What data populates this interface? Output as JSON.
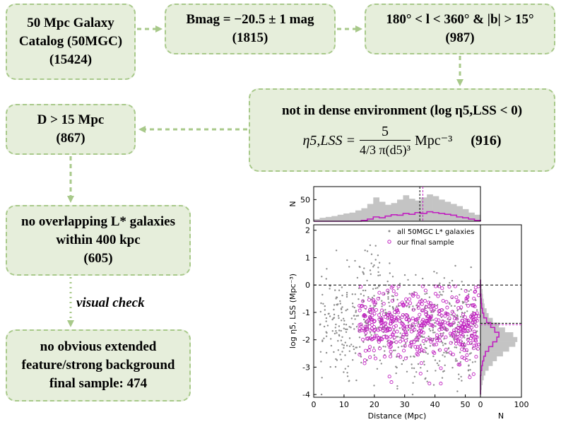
{
  "boxes": {
    "catalog": {
      "line1": "50 Mpc Galaxy",
      "line2": "Catalog (50MGC)",
      "count": "(15424)"
    },
    "bmag": {
      "line1": "Bmag = −20.5 ± 1 mag",
      "count": "(1815)"
    },
    "sky": {
      "line1": "180° < l < 360° & |b| > 15°",
      "count": "(987)"
    },
    "dense": {
      "title": "not in dense environment (log η5,LSS < 0)",
      "eq_lhs": "η5,LSS =",
      "eq_num": "5",
      "eq_den": "4/3 π(d5)³",
      "eq_unit": "Mpc⁻³",
      "count": "(916)"
    },
    "dist": {
      "line1": "D > 15 Mpc",
      "count": "(867)"
    },
    "overlap": {
      "line1": "no overlapping L* galaxies",
      "line2": "within 400 kpc",
      "count": "(605)"
    },
    "final": {
      "line1": "no obvious extended",
      "line2": "feature/strong background",
      "line3": "final sample: 474"
    }
  },
  "visual_check": "visual check",
  "colors": {
    "box_fill": "#e6eedb",
    "box_border": "#a8c98a",
    "all_points": "#8c8c8c",
    "sample_points": "#c020c0"
  },
  "chart_data": {
    "type": "scatter",
    "xlabel": "Distance (Mpc)",
    "ylabel": "log η5, LSS (Mpc⁻³)",
    "top_ylabel": "N",
    "right_xlabel": "N",
    "xlim": [
      0,
      55
    ],
    "ylim": [
      -4.1,
      2.2
    ],
    "x_ticks": [
      "0",
      "10",
      "20",
      "30",
      "40",
      "50"
    ],
    "y_ticks": [
      "-4",
      "-3",
      "-2",
      "-1",
      "0",
      "1",
      "2"
    ],
    "top_y_ticks": [
      "0",
      "50"
    ],
    "right_x_ticks": [
      "0",
      "100"
    ],
    "legend": [
      "all 50MGC L* galaxies",
      "our final sample"
    ],
    "legend_position": "top-right",
    "hline_y": 0,
    "median_distance_all": 35,
    "median_distance_sample": 36,
    "median_eta_all": -1.4,
    "median_eta_sample": -1.45,
    "top_hist_all": [
      5,
      8,
      10,
      12,
      15,
      18,
      20,
      25,
      30,
      40,
      55,
      45,
      38,
      42,
      50,
      60,
      52,
      48,
      55,
      62,
      58,
      50,
      45,
      40,
      35,
      28,
      20,
      15
    ],
    "top_hist_sample": [
      0,
      0,
      0,
      0,
      0,
      0,
      0,
      0,
      2,
      5,
      10,
      8,
      12,
      15,
      14,
      18,
      16,
      20,
      18,
      22,
      20,
      18,
      16,
      14,
      10,
      8,
      5,
      2
    ],
    "right_hist_all": [
      2,
      3,
      5,
      6,
      8,
      10,
      15,
      20,
      30,
      45,
      60,
      80,
      90,
      85,
      70,
      55,
      40,
      30,
      20,
      12,
      8,
      5,
      3,
      2
    ],
    "right_hist_sample": [
      0,
      0,
      0,
      1,
      2,
      3,
      5,
      8,
      15,
      25,
      35,
      45,
      40,
      30,
      20,
      12,
      8,
      5,
      3,
      1,
      0,
      0,
      0,
      0
    ]
  }
}
